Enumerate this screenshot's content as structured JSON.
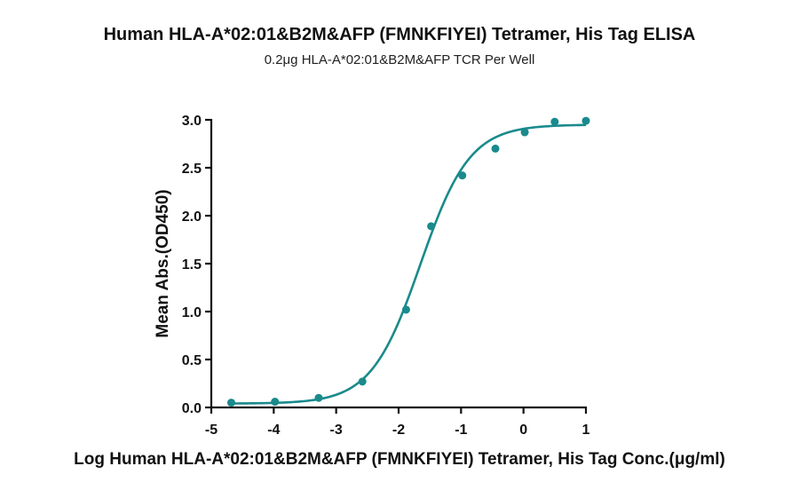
{
  "chart_data": {
    "type": "scatter",
    "title": "Human HLA-A*02:01&B2M&AFP (FMNKFIYEI) Tetramer, His Tag ELISA",
    "subtitle": "0.2μg HLA-A*02:01&B2M&AFP TCR Per Well",
    "xlabel": "Log Human HLA-A*02:01&B2M&AFP (FMNKFIYEI) Tetramer, His Tag Conc.(μg/ml)",
    "ylabel": "Mean Abs.(OD450)",
    "xlim": [
      -5,
      1
    ],
    "ylim": [
      0,
      3
    ],
    "x_ticks": [
      "-5",
      "-4",
      "-3",
      "-2",
      "-1",
      "0",
      "1"
    ],
    "y_ticks": [
      "0.0",
      "0.5",
      "1.0",
      "1.5",
      "2.0",
      "2.5",
      "3.0"
    ],
    "grid": false,
    "color": "#1a8a8c",
    "series": [
      {
        "points": [
          {
            "x": -4.68,
            "y": 0.05
          },
          {
            "x": -3.98,
            "y": 0.06
          },
          {
            "x": -3.28,
            "y": 0.1
          },
          {
            "x": -2.58,
            "y": 0.27
          },
          {
            "x": -1.88,
            "y": 1.02
          },
          {
            "x": -1.48,
            "y": 1.89
          },
          {
            "x": -0.98,
            "y": 2.42
          },
          {
            "x": -0.45,
            "y": 2.7
          },
          {
            "x": 0.02,
            "y": 2.87
          },
          {
            "x": 0.5,
            "y": 2.98
          },
          {
            "x": 1.0,
            "y": 2.99
          }
        ],
        "fit": {
          "type": "4PL",
          "bottom": 0.04,
          "top": 2.95,
          "logEC50": -1.65,
          "hill": 1.1,
          "x_range": [
            -4.68,
            1.0
          ]
        }
      }
    ]
  }
}
